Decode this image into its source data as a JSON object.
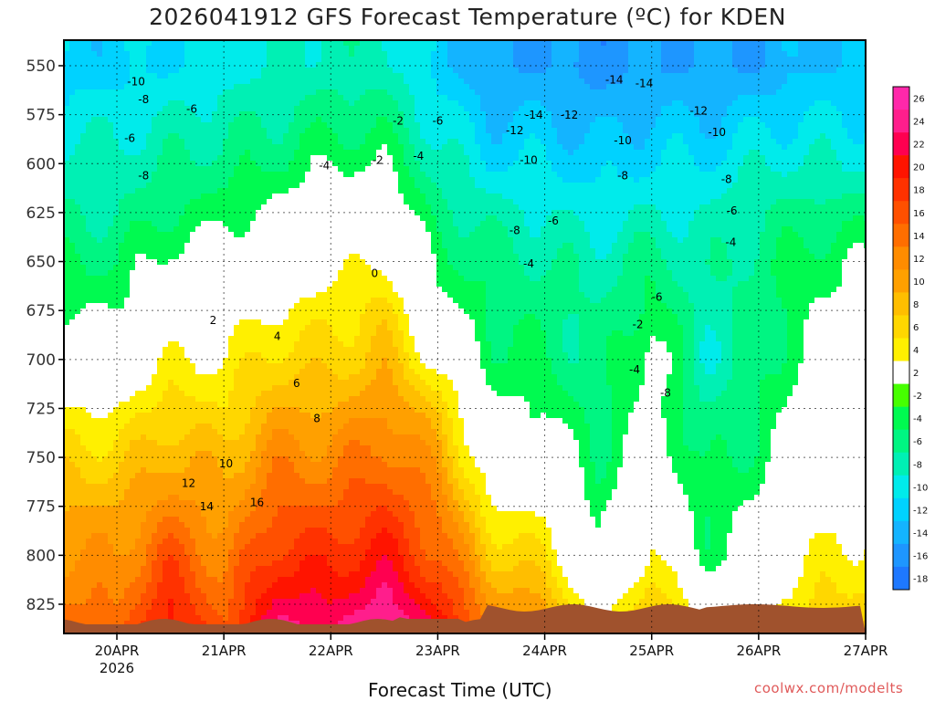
{
  "title": "2026041912 GFS Forecast Temperature (ºC) for KDEN",
  "x_axis_title": "Forecast Time (UTC)",
  "credit": "coolwx.com/modelts",
  "chart_data": {
    "type": "heatmap",
    "title": "2026041912 GFS Forecast Temperature (ºC) for KDEN",
    "xlabel": "Forecast Time (UTC)",
    "ylabel": "",
    "y_axis": {
      "scale": "pressure (hPa), inverted",
      "range": [
        838,
        540
      ],
      "ticks": [
        550,
        575,
        600,
        625,
        650,
        675,
        700,
        725,
        750,
        775,
        800,
        825
      ]
    },
    "x_axis": {
      "ticks": [
        "20APR",
        "21APR",
        "22APR",
        "23APR",
        "24APR",
        "25APR",
        "26APR",
        "27APR"
      ],
      "first_tick_sublabel": "2026"
    },
    "grid": true,
    "colorbar": {
      "position": "right",
      "levels": [
        -18,
        -16,
        -14,
        -12,
        -10,
        -8,
        -6,
        -4,
        -2,
        2,
        4,
        6,
        8,
        10,
        12,
        14,
        16,
        18,
        20,
        22,
        24,
        26
      ],
      "colors": [
        "#1e78ff",
        "#1e96ff",
        "#14b4ff",
        "#00d2ff",
        "#00ebeb",
        "#00f0b4",
        "#00f582",
        "#00fa50",
        "#46ff00",
        "#ffffff",
        "#fff000",
        "#ffd700",
        "#ffbe00",
        "#ffa000",
        "#ff8c00",
        "#ff6e00",
        "#ff5000",
        "#ff3200",
        "#ff1400",
        "#ff0050",
        "#ff1e8c",
        "#ff28aa"
      ]
    },
    "series": [
      {
        "time_day": 0.0,
        "temps_at_pressure": {
          "825": 14,
          "800": 12,
          "775": 10,
          "750": 7,
          "725": 4,
          "700": 1,
          "675": -2,
          "650": -4,
          "625": -6,
          "600": -7,
          "575": -9,
          "550": -11
        }
      },
      {
        "time_day": 0.5,
        "temps_at_pressure": {
          "825": 20,
          "800": 17,
          "775": 13,
          "750": 10,
          "725": 7,
          "700": 4,
          "675": 1,
          "650": -1,
          "625": -4,
          "600": -6,
          "575": -8,
          "550": -10
        }
      },
      {
        "time_day": 1.0,
        "temps_at_pressure": {
          "825": 15,
          "800": 13,
          "775": 11,
          "750": 9,
          "725": 6,
          "700": 4,
          "675": 2,
          "650": 0,
          "625": -3,
          "600": -5,
          "575": -7,
          "550": -9
        }
      },
      {
        "time_day": 1.5,
        "temps_at_pressure": {
          "825": 23,
          "800": 19,
          "775": 16,
          "750": 13,
          "725": 10,
          "700": 7,
          "675": 4,
          "650": 2,
          "625": -1,
          "600": -4,
          "575": -6,
          "550": -8
        }
      },
      {
        "time_day": 2.0,
        "temps_at_pressure": {
          "825": 22,
          "800": 19,
          "775": 16,
          "750": 13,
          "725": 10,
          "700": 7,
          "675": 5,
          "650": 3,
          "625": 0,
          "600": -2,
          "575": -5,
          "550": -7
        }
      },
      {
        "time_day": 2.5,
        "temps_at_pressure": {
          "825": 25,
          "800": 21,
          "775": 18,
          "750": 15,
          "725": 12,
          "700": 9,
          "675": 7,
          "650": 4,
          "625": 1,
          "600": -2,
          "575": -5,
          "550": -7
        }
      },
      {
        "time_day": 3.0,
        "temps_at_pressure": {
          "825": 20,
          "800": 16,
          "775": 14,
          "750": 11,
          "725": 8,
          "700": 3,
          "675": -1,
          "650": -3,
          "625": -5,
          "600": -7,
          "575": -9,
          "550": -11
        }
      },
      {
        "time_day": 3.5,
        "temps_at_pressure": {
          "825": 12,
          "800": 8,
          "775": 4,
          "750": 1,
          "725": -1,
          "700": -3,
          "675": -4,
          "650": -5,
          "625": -7,
          "600": -10,
          "575": -12,
          "550": -14
        }
      },
      {
        "time_day": 4.0,
        "temps_at_pressure": {
          "825": 10,
          "800": 6,
          "775": 3,
          "750": 0,
          "725": -2,
          "700": -4,
          "675": -5,
          "650": -6,
          "625": -8,
          "600": -10,
          "575": -12,
          "550": -14
        }
      },
      {
        "time_day": 4.5,
        "temps_at_pressure": {
          "825": 2,
          "800": -2,
          "775": -3,
          "750": -4,
          "725": -5,
          "700": -6,
          "675": -6,
          "650": -7,
          "625": -9,
          "600": -11,
          "575": -13,
          "550": -15
        }
      },
      {
        "time_day": 5.0,
        "temps_at_pressure": {
          "825": 8,
          "800": 5,
          "775": 3,
          "750": 1,
          "725": -1,
          "700": 0,
          "675": -3,
          "650": -5,
          "625": -8,
          "600": -10,
          "575": -12,
          "550": -14
        }
      },
      {
        "time_day": 5.5,
        "temps_at_pressure": {
          "825": 2,
          "800": -3,
          "775": -4,
          "750": -5,
          "725": -6,
          "700": -8,
          "675": -7,
          "650": -7,
          "625": -8,
          "600": -10,
          "575": -12,
          "550": -14
        }
      },
      {
        "time_day": 6.0,
        "temps_at_pressure": {
          "825": 3,
          "800": 1,
          "775": -1,
          "750": -3,
          "725": -4,
          "700": -5,
          "675": -5,
          "650": -5,
          "625": -6,
          "600": -8,
          "575": -11,
          "550": -14
        }
      },
      {
        "time_day": 6.5,
        "temps_at_pressure": {
          "825": 6,
          "800": 4,
          "775": 2,
          "750": 1,
          "725": 0,
          "700": -1,
          "675": -2,
          "650": -3,
          "625": -5,
          "600": -8,
          "575": -10,
          "550": -12
        }
      },
      {
        "time_day": 7.0,
        "temps_at_pressure": {
          "825": 7,
          "800": 5,
          "775": 3,
          "750": 2,
          "725": 1,
          "700": 0,
          "675": -1,
          "650": -2,
          "625": -5,
          "600": -8,
          "575": -10,
          "550": -12
        }
      }
    ],
    "contour_labels": [
      {
        "text": "-10",
        "x": 0.18,
        "p": 560
      },
      {
        "text": "-8",
        "x": 0.25,
        "p": 569
      },
      {
        "text": "-6",
        "x": 0.7,
        "p": 574
      },
      {
        "text": "-6",
        "x": 0.12,
        "p": 589
      },
      {
        "text": "-8",
        "x": 0.25,
        "p": 608
      },
      {
        "text": "-4",
        "x": 2.82,
        "p": 598
      },
      {
        "text": "-2",
        "x": 2.44,
        "p": 600
      },
      {
        "text": "-4",
        "x": 1.94,
        "p": 603
      },
      {
        "text": "-2",
        "x": 2.63,
        "p": 580
      },
      {
        "text": "-6",
        "x": 3.0,
        "p": 580
      },
      {
        "text": "0",
        "x": 2.41,
        "p": 658
      },
      {
        "text": "2",
        "x": 0.9,
        "p": 682
      },
      {
        "text": "4",
        "x": 1.5,
        "p": 690
      },
      {
        "text": "6",
        "x": 1.68,
        "p": 714
      },
      {
        "text": "8",
        "x": 1.87,
        "p": 732
      },
      {
        "text": "10",
        "x": 1.02,
        "p": 755
      },
      {
        "text": "12",
        "x": 0.67,
        "p": 765
      },
      {
        "text": "14",
        "x": 0.84,
        "p": 777
      },
      {
        "text": "16",
        "x": 1.31,
        "p": 775
      },
      {
        "text": "-14",
        "x": 4.65,
        "p": 559
      },
      {
        "text": "-14",
        "x": 3.9,
        "p": 577
      },
      {
        "text": "-12",
        "x": 4.23,
        "p": 577
      },
      {
        "text": "-12",
        "x": 3.72,
        "p": 585
      },
      {
        "text": "-10",
        "x": 3.85,
        "p": 600
      },
      {
        "text": "-10",
        "x": 4.73,
        "p": 590
      },
      {
        "text": "-8",
        "x": 4.73,
        "p": 608
      },
      {
        "text": "-8",
        "x": 3.72,
        "p": 636
      },
      {
        "text": "-6",
        "x": 4.08,
        "p": 631
      },
      {
        "text": "-4",
        "x": 3.85,
        "p": 653
      },
      {
        "text": "-2",
        "x": 4.87,
        "p": 684
      },
      {
        "text": "-6",
        "x": 5.05,
        "p": 670
      },
      {
        "text": "-4",
        "x": 4.84,
        "p": 707
      },
      {
        "text": "-8",
        "x": 5.13,
        "p": 719
      },
      {
        "text": "-14",
        "x": 4.93,
        "p": 561
      },
      {
        "text": "-12",
        "x": 5.44,
        "p": 575
      },
      {
        "text": "-10",
        "x": 5.61,
        "p": 586
      },
      {
        "text": "-8",
        "x": 5.7,
        "p": 610
      },
      {
        "text": "-6",
        "x": 5.75,
        "p": 626
      },
      {
        "text": "-4",
        "x": 5.74,
        "p": 642
      }
    ]
  }
}
